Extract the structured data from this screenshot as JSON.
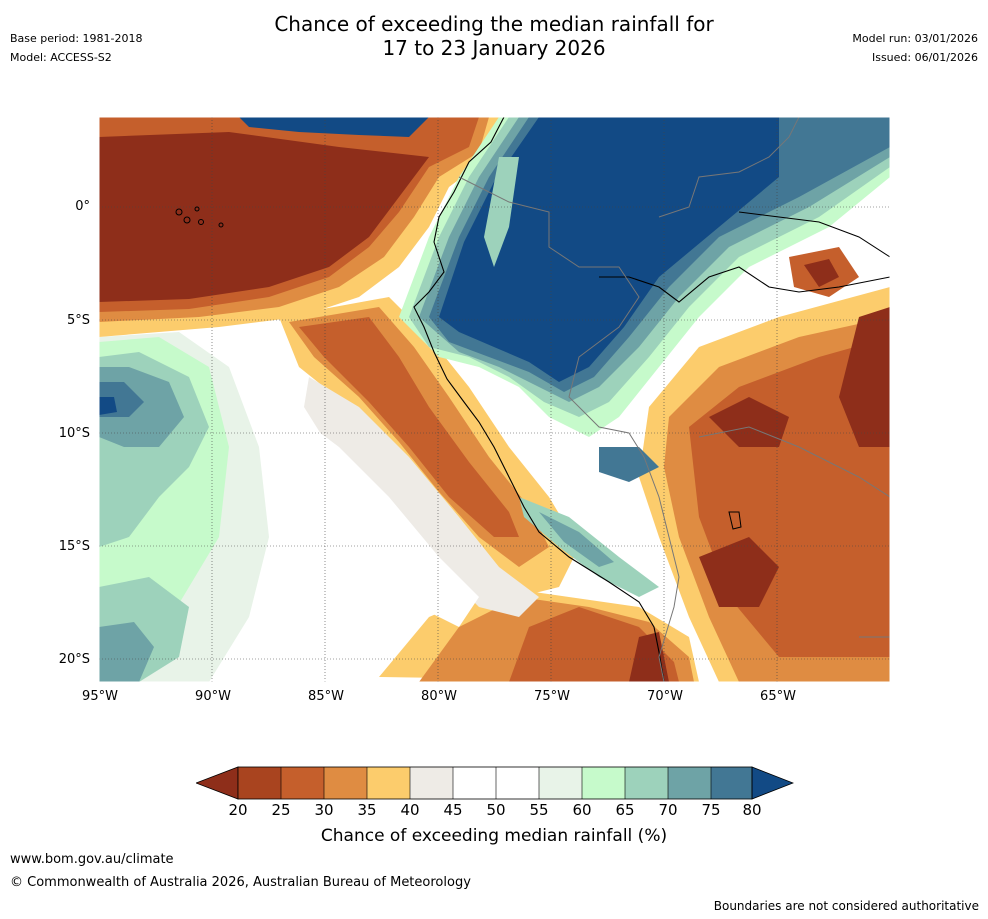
{
  "title_line1": "Chance of exceeding the median rainfall for",
  "title_line2": "17 to 23 January 2026",
  "base_period": "Base period: 1981-2018",
  "model": "Model: ACCESS-S2",
  "model_run": "Model run: 03/01/2026",
  "issued": "Issued: 06/01/2026",
  "map": {
    "region": "Western South America (Peru, Ecuador, Colombia, Brazil, Bolivia, Chile) and adjacent Pacific",
    "lat_labels": [
      "0°",
      "5°S",
      "10°S",
      "15°S",
      "20°S"
    ],
    "lon_labels": [
      "95°W",
      "90°W",
      "85°W",
      "80°W",
      "75°W",
      "70°W",
      "65°W"
    ]
  },
  "colorbar": {
    "ticks": [
      "20",
      "25",
      "30",
      "35",
      "40",
      "45",
      "50",
      "55",
      "60",
      "65",
      "70",
      "75",
      "80"
    ],
    "colors": {
      "under": "#8e2e1a",
      "b20_25": "#a9441f",
      "b25_30": "#c55f2c",
      "b30_35": "#df8c42",
      "b35_40": "#fccc6c",
      "b40_45": "#eeebe6",
      "b45_50": "#ffffff",
      "b50_55": "#ffffff",
      "b55_60": "#e8f3e8",
      "b60_65": "#c6facb",
      "b65_70": "#9dd2bb",
      "b70_75": "#6ea3a6",
      "b75_80": "#427794",
      "over": "#124a85"
    },
    "label": "Chance of exceeding median rainfall (%)"
  },
  "footer": {
    "website": "www.bom.gov.au/climate",
    "copyright": "© Commonwealth of Australia 2026, Australian Bureau of Meteorology",
    "disclaimer": "Boundaries are not considered authoritative"
  }
}
